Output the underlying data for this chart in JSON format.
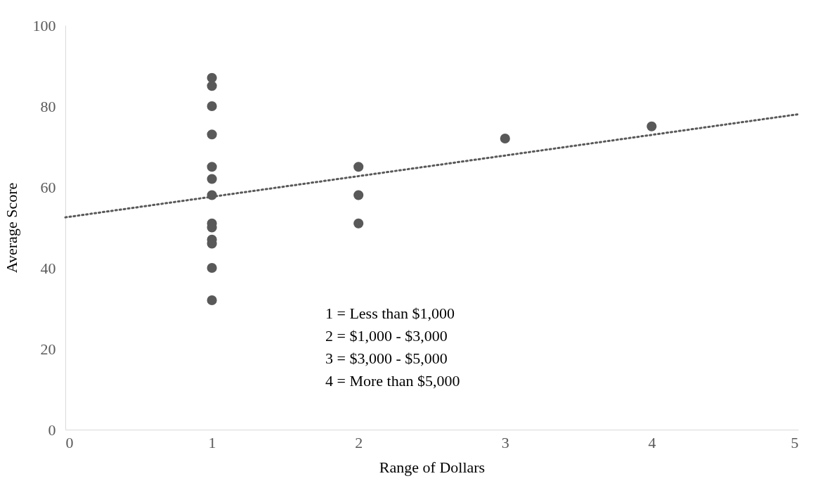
{
  "chart_data": {
    "type": "scatter",
    "xlabel": "Range of  Dollars",
    "ylabel": "Average Score",
    "xlim": [
      0,
      5
    ],
    "xticks": [
      0,
      1,
      2,
      3,
      4,
      5
    ],
    "ylim": [
      0,
      100
    ],
    "yticks": [
      0,
      20,
      40,
      60,
      80,
      100
    ],
    "grid": false,
    "series": [
      {
        "type": "scatter",
        "marker": "circle",
        "color": "#595959",
        "x": [
          1,
          1,
          1,
          1,
          1,
          1,
          1,
          1,
          1,
          1,
          1,
          1,
          1,
          2,
          2,
          2,
          3,
          4
        ],
        "values": [
          87,
          85,
          80,
          73,
          65,
          62,
          58,
          51,
          50,
          47,
          46,
          40,
          32,
          65,
          58,
          51,
          72,
          75
        ]
      },
      {
        "type": "line",
        "marker": "none",
        "color": "#595959",
        "line_style": "dotted",
        "x": [
          0,
          5
        ],
        "values": [
          52.5,
          78
        ]
      }
    ],
    "annotations": [
      "1 = Less than $1,000",
      "2 = $1,000 - $3,000",
      "3 = $3,000 - $5,000",
      "4 = More than $5,000"
    ]
  }
}
